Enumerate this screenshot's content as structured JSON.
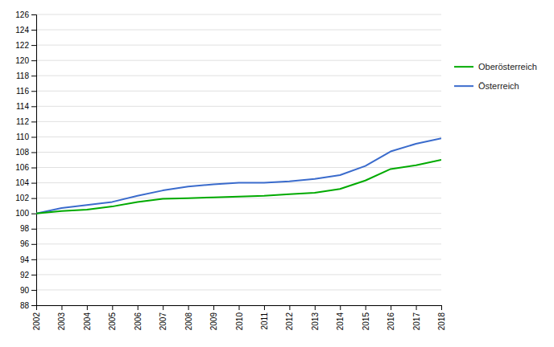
{
  "chart_data": {
    "type": "line",
    "x": [
      2002,
      2003,
      2004,
      2005,
      2006,
      2007,
      2008,
      2009,
      2010,
      2011,
      2012,
      2013,
      2014,
      2015,
      2016,
      2017,
      2018
    ],
    "series": [
      {
        "name": "Oberösterreich",
        "color": "#00aa00",
        "values": [
          100.0,
          100.3,
          100.5,
          100.9,
          101.5,
          101.9,
          102.0,
          102.1,
          102.2,
          102.3,
          102.5,
          102.7,
          103.2,
          104.3,
          105.8,
          106.3,
          107.0
        ]
      },
      {
        "name": "Österreich",
        "color": "#3a6bcc",
        "values": [
          100.0,
          100.7,
          101.1,
          101.5,
          102.3,
          103.0,
          103.5,
          103.8,
          104.0,
          104.0,
          104.2,
          104.5,
          105.0,
          106.2,
          108.1,
          109.1,
          109.8
        ]
      }
    ],
    "xlim": [
      2002,
      2018
    ],
    "xticks": [
      2002,
      2003,
      2004,
      2005,
      2006,
      2007,
      2008,
      2009,
      2010,
      2011,
      2012,
      2013,
      2014,
      2015,
      2016,
      2017,
      2018
    ],
    "ylim": [
      88,
      126
    ],
    "yticks": [
      88,
      90,
      92,
      94,
      96,
      98,
      100,
      102,
      104,
      106,
      108,
      110,
      112,
      114,
      116,
      118,
      120,
      122,
      124,
      126
    ],
    "grid": true,
    "legend": "right"
  }
}
